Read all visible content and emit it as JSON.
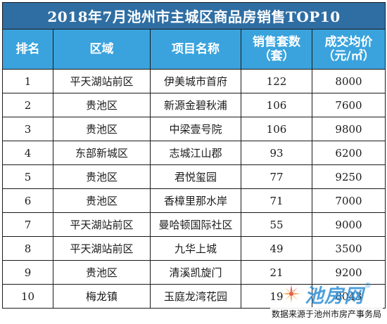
{
  "title": "2018年7月池州市主城区商品房销售TOP10",
  "headers": {
    "rank": "排名",
    "area": "区域",
    "project": "项目名称",
    "sets_line1": "销售套数",
    "sets_line2": "（套）",
    "price_line1": "成交均价",
    "price_line2": "（元/㎡）"
  },
  "rows": [
    {
      "rank": "1",
      "area": "平天湖站前区",
      "project": "伊美城市首府",
      "sets": "122",
      "price": "8000"
    },
    {
      "rank": "2",
      "area": "贵池区",
      "project": "新源金碧秋浦",
      "sets": "106",
      "price": "7600"
    },
    {
      "rank": "3",
      "area": "贵池区",
      "project": "中梁壹号院",
      "sets": "106",
      "price": "9800"
    },
    {
      "rank": "4",
      "area": "东部新城区",
      "project": "志城江山郡",
      "sets": "93",
      "price": "6200"
    },
    {
      "rank": "5",
      "area": "贵池区",
      "project": "君悦玺园",
      "sets": "77",
      "price": "9250"
    },
    {
      "rank": "6",
      "area": "贵池区",
      "project": "香樟里那水岸",
      "sets": "71",
      "price": "7000"
    },
    {
      "rank": "7",
      "area": "平天湖站前区",
      "project": "曼哈顿国际社区",
      "sets": "55",
      "price": "9000"
    },
    {
      "rank": "8",
      "area": "平天湖站前区",
      "project": "九华上城",
      "sets": "49",
      "price": "3500"
    },
    {
      "rank": "9",
      "area": "贵池区",
      "project": "清溪凯旋门",
      "sets": "21",
      "price": "9200"
    },
    {
      "rank": "10",
      "area": "梅龙镇",
      "project": "玉庭龙湾花园",
      "sets": "19",
      "price": "8043"
    }
  ],
  "watermark": {
    "text": "池房网",
    "registered": "®"
  },
  "source_note": "数据来源于池州市房产事务局",
  "colors": {
    "title_bg": "#2f6ea3",
    "header_bg": "#3aa3dd",
    "border": "#1a1a1a",
    "watermark": "#2f8fd6"
  },
  "icons": {
    "watermark_logo": "starburst-logo-icon"
  }
}
